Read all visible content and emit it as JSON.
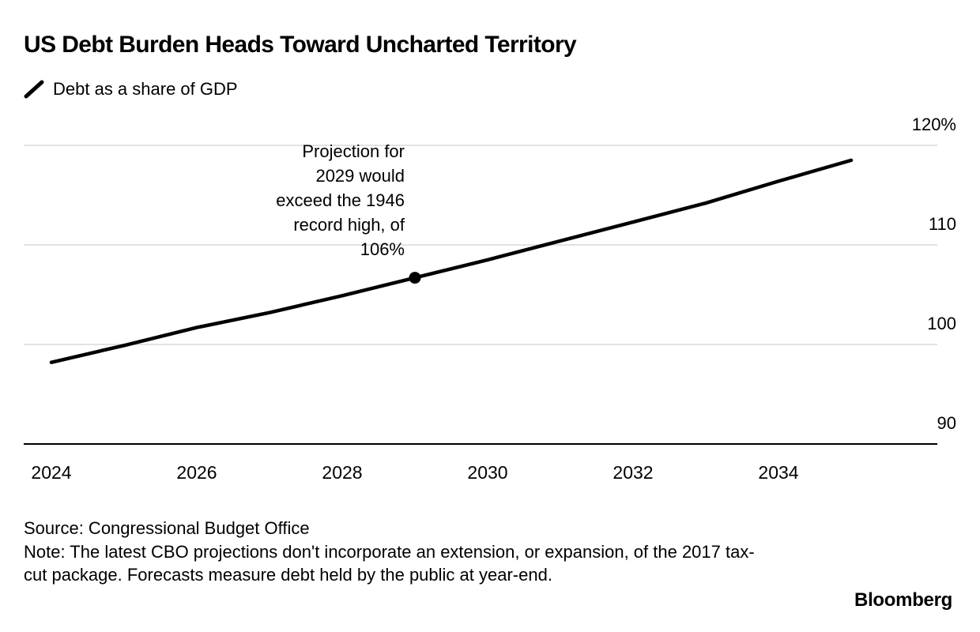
{
  "title": "US Debt Burden Heads Toward Uncharted Territory",
  "legend": {
    "label": "Debt as a share of GDP"
  },
  "annotation": {
    "lines": [
      "Projection for",
      "2029 would",
      "exceed the 1946",
      "record high, of",
      "106%"
    ]
  },
  "chart_data": {
    "type": "line",
    "title": "US Debt Burden Heads Toward Uncharted Territory",
    "series": [
      {
        "name": "Debt as a share of GDP",
        "values": [
          98.2,
          99.9,
          101.7,
          103.2,
          104.9,
          106.7,
          108.5,
          110.4,
          112.3,
          114.2,
          116.4,
          118.5
        ]
      }
    ],
    "x": [
      2024,
      2025,
      2026,
      2027,
      2028,
      2029,
      2030,
      2031,
      2032,
      2033,
      2034,
      2035
    ],
    "xlabel": "",
    "ylabel": "",
    "ylim": [
      90,
      120
    ],
    "x_ticks": [
      2024,
      2026,
      2028,
      2030,
      2032,
      2034
    ],
    "y_ticks": [
      {
        "value": 120,
        "label": "120%"
      },
      {
        "value": 110,
        "label": "110"
      },
      {
        "value": 100,
        "label": "100"
      },
      {
        "value": 90,
        "label": "90"
      }
    ],
    "marker": {
      "year": 2029,
      "value": 106.7,
      "note": "Projection for 2029 would exceed the 1946 record high, of 106%"
    },
    "grid": "horizontal",
    "legend_position": "top-left",
    "line_color": "#000000",
    "gridline_color": "#d8d8d8"
  },
  "footer": {
    "source": "Source: Congressional Budget Office",
    "note": "Note: The latest CBO projections don't incorporate an extension, or expansion, of the 2017 tax-cut package. Forecasts measure debt held by the public at year-end.",
    "brand": "Bloomberg"
  }
}
